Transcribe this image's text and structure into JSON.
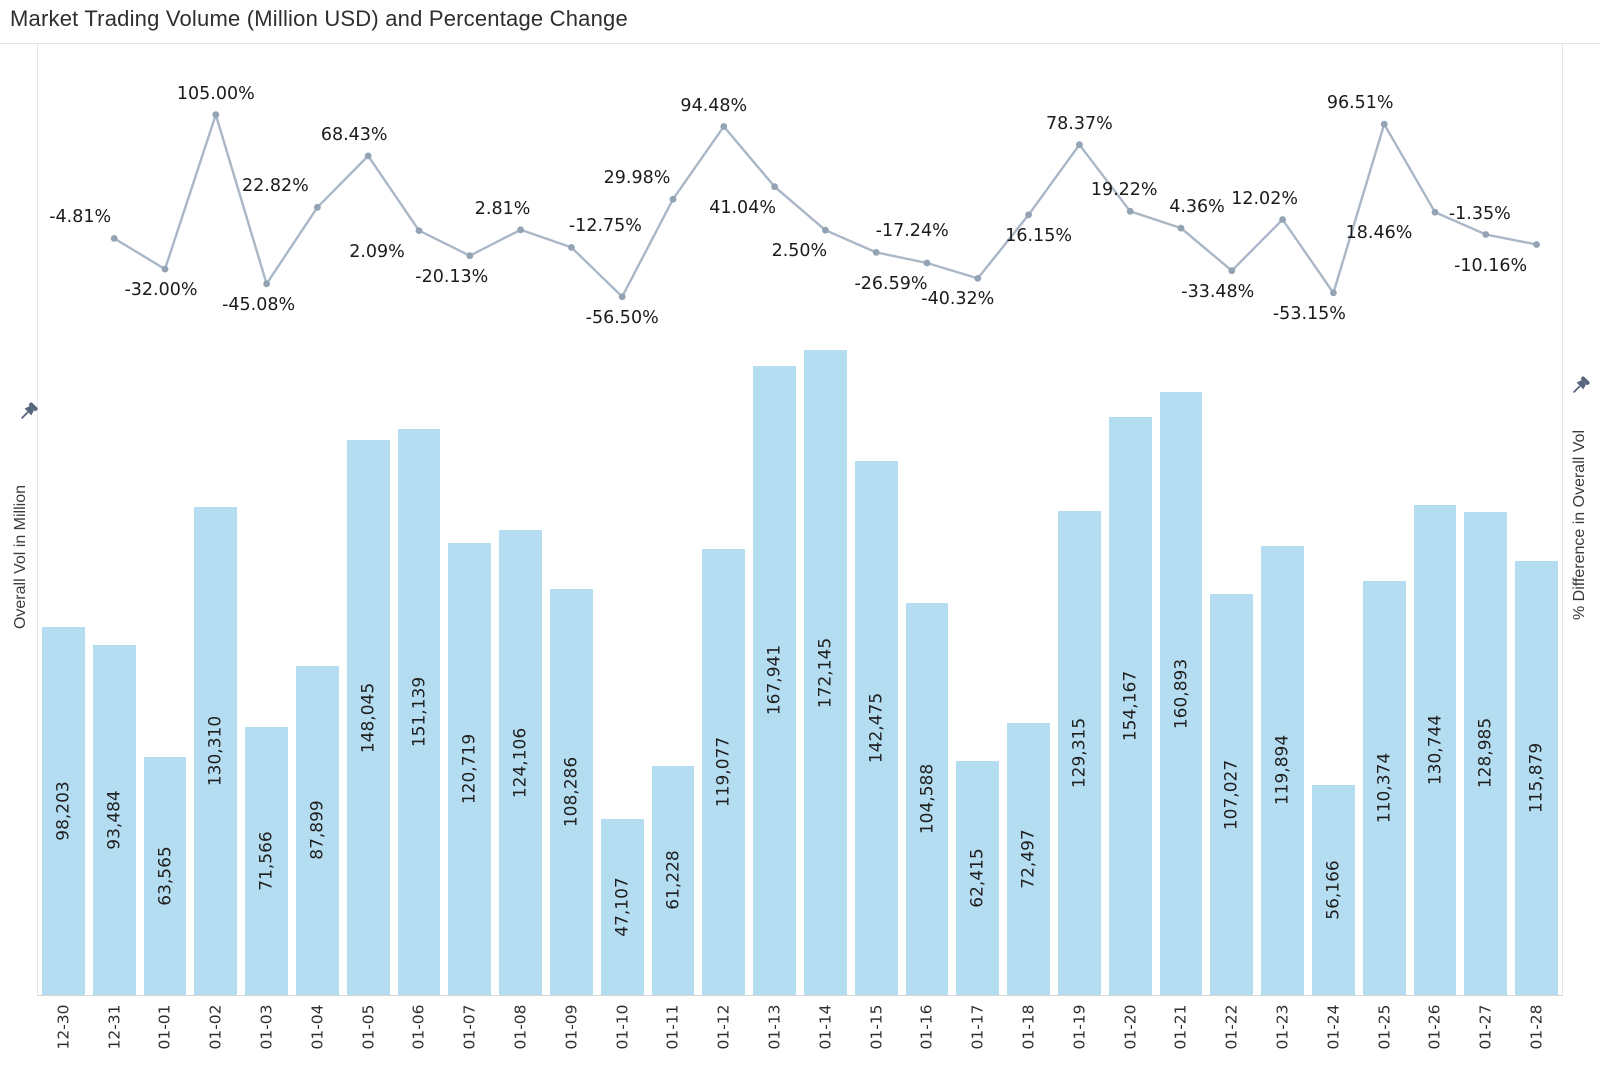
{
  "title": "Market Trading Volume (Million USD) and Percentage Change",
  "left_axis": {
    "label": "Overall Vol in Million",
    "pin_icon": "pushpin-icon"
  },
  "right_axis": {
    "label": "% Difference in Overall Vol",
    "pin_icon": "pushpin-icon"
  },
  "colors": {
    "bar": "#b5ddf2",
    "line": "#a9b7c6",
    "marker": "#93a3b4",
    "data_label_text": "#1f1f1f",
    "title_text": "#2e2e2e",
    "border": "#e5e5e5",
    "axis_line": "#d7d7d7",
    "pin": "#57667d"
  },
  "chart_data": {
    "type": "combo-bar-line",
    "title": "Market Trading Volume (Million USD) and Percentage Change",
    "categories": [
      "12-30",
      "12-31",
      "01-01",
      "01-02",
      "01-03",
      "01-04",
      "01-05",
      "01-06",
      "01-07",
      "01-08",
      "01-09",
      "01-10",
      "01-11",
      "01-12",
      "01-13",
      "01-14",
      "01-15",
      "01-16",
      "01-17",
      "01-18",
      "01-19",
      "01-20",
      "01-21",
      "01-22",
      "01-23",
      "01-24",
      "01-25",
      "01-26",
      "01-27",
      "01-28"
    ],
    "bar_axis": {
      "label": "Overall Vol in Million",
      "max_value": 172145,
      "gridlines": false
    },
    "line_axis": {
      "label": "% Difference in Overall Vol",
      "approx_range": [
        -60,
        110
      ]
    },
    "legend": "none",
    "series": [
      {
        "name": "Overall Vol in Million",
        "type": "bar",
        "values": [
          98203,
          93484,
          63565,
          130310,
          71566,
          87899,
          148045,
          151139,
          120719,
          124106,
          108286,
          47107,
          61228,
          119077,
          167941,
          172145,
          142475,
          104588,
          62415,
          72497,
          129315,
          154167,
          160893,
          107027,
          119894,
          56166,
          110374,
          130744,
          128985,
          115879
        ],
        "value_labels": [
          "98,203",
          "93,484",
          "63,565",
          "130,310",
          "71,566",
          "87,899",
          "148,045",
          "151,139",
          "120,719",
          "124,106",
          "108,286",
          "47,107",
          "61,228",
          "119,077",
          "167,941",
          "172,145",
          "142,475",
          "104,588",
          "62,415",
          "72,497",
          "129,315",
          "154,167",
          "160,893",
          "107,027",
          "119,894",
          "56,166",
          "110,374",
          "130,744",
          "128,985",
          "115,879"
        ]
      },
      {
        "name": "% Difference in Overall Vol",
        "type": "line",
        "points": [
          {
            "date": "12-31",
            "value": -4.81,
            "label": "-4.81%",
            "label_pos": "above",
            "label_dx": -34
          },
          {
            "date": "01-01",
            "value": -32.0,
            "label": "-32.00%",
            "label_pos": "below",
            "label_dx": -4
          },
          {
            "date": "01-02",
            "value": 105.0,
            "label": "105.00%",
            "label_pos": "above",
            "label_dx": 0
          },
          {
            "date": "01-03",
            "value": -45.08,
            "label": "-45.08%",
            "label_pos": "below",
            "label_dx": -8
          },
          {
            "date": "01-04",
            "value": 22.82,
            "label": "22.82%",
            "label_pos": "above",
            "label_dx": -42
          },
          {
            "date": "01-05",
            "value": 68.43,
            "label": "68.43%",
            "label_pos": "above",
            "label_dx": -14
          },
          {
            "date": "01-06",
            "value": 2.09,
            "label": "2.09%",
            "label_pos": "below",
            "label_dx": -42
          },
          {
            "date": "01-07",
            "value": -20.13,
            "label": "-20.13%",
            "label_pos": "below",
            "label_dx": -18
          },
          {
            "date": "01-08",
            "value": 2.81,
            "label": "2.81%",
            "label_pos": "above",
            "label_dx": -18
          },
          {
            "date": "01-09",
            "value": -12.75,
            "label": "-12.75%",
            "label_pos": "above",
            "label_dx": 34
          },
          {
            "date": "01-10",
            "value": -56.5,
            "label": "-56.50%",
            "label_pos": "below",
            "label_dx": 0
          },
          {
            "date": "01-11",
            "value": 29.98,
            "label": "29.98%",
            "label_pos": "above",
            "label_dx": -36
          },
          {
            "date": "01-12",
            "value": 94.48,
            "label": "94.48%",
            "label_pos": "above",
            "label_dx": -10
          },
          {
            "date": "01-13",
            "value": 41.04,
            "label": "41.04%",
            "label_pos": "below",
            "label_dx": -32
          },
          {
            "date": "01-14",
            "value": 2.5,
            "label": "2.50%",
            "label_pos": "below",
            "label_dx": -26
          },
          {
            "date": "01-15",
            "value": -17.24,
            "label": "-17.24%",
            "label_pos": "above",
            "label_dx": 36
          },
          {
            "date": "01-16",
            "value": -26.59,
            "label": "-26.59%",
            "label_pos": "below",
            "label_dx": -36
          },
          {
            "date": "01-17",
            "value": -40.32,
            "label": "-40.32%",
            "label_pos": "below",
            "label_dx": -20
          },
          {
            "date": "01-18",
            "value": 16.15,
            "label": "16.15%",
            "label_pos": "below",
            "label_dx": 10
          },
          {
            "date": "01-19",
            "value": 78.37,
            "label": "78.37%",
            "label_pos": "above",
            "label_dx": 0
          },
          {
            "date": "01-20",
            "value": 19.22,
            "label": "19.22%",
            "label_pos": "above",
            "label_dx": -6
          },
          {
            "date": "01-21",
            "value": 4.36,
            "label": "4.36%",
            "label_pos": "above",
            "label_dx": 16
          },
          {
            "date": "01-22",
            "value": -33.48,
            "label": "-33.48%",
            "label_pos": "below",
            "label_dx": -14
          },
          {
            "date": "01-23",
            "value": 12.02,
            "label": "12.02%",
            "label_pos": "above",
            "label_dx": -18
          },
          {
            "date": "01-24",
            "value": -53.15,
            "label": "-53.15%",
            "label_pos": "below",
            "label_dx": -24
          },
          {
            "date": "01-25",
            "value": 96.51,
            "label": "96.51%",
            "label_pos": "above",
            "label_dx": -24
          },
          {
            "date": "01-26",
            "value": 18.46,
            "label": "18.46%",
            "label_pos": "below",
            "label_dx": -56
          },
          {
            "date": "01-27",
            "value": -1.35,
            "label": "-1.35%",
            "label_pos": "above",
            "label_dx": -6
          },
          {
            "date": "01-28",
            "value": -10.16,
            "label": "-10.16%",
            "label_pos": "below",
            "label_dx": -46
          }
        ]
      }
    ]
  }
}
